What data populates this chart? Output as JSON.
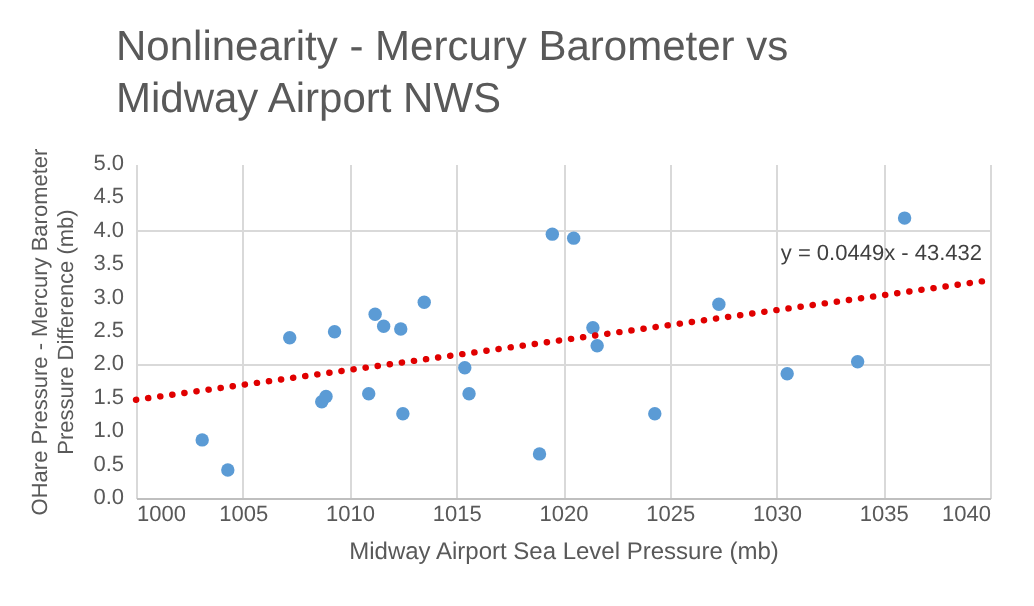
{
  "chart_data": {
    "type": "scatter",
    "title": "Nonlinearity - Mercury Barometer vs\nMidway Airport NWS",
    "xlabel": "Midway Airport Sea Level Pressure (mb)",
    "ylabel": "OHare Pressure - Mercury Barometer\nPressure Difference (mb)",
    "series": [
      {
        "color": "#5b9bd5",
        "x": [
          1003.1,
          1004.3,
          1007.2,
          1009.3,
          1008.7,
          1008.9,
          1011.2,
          1011.6,
          1012.4,
          1010.9,
          1012.5,
          1013.5,
          1015.4,
          1015.6,
          1018.9,
          1019.5,
          1020.5,
          1021.4,
          1021.6,
          1024.3,
          1027.3,
          1030.5,
          1033.8,
          1036.0
        ],
        "values": [
          0.87,
          0.42,
          2.4,
          2.49,
          1.44,
          1.52,
          2.75,
          2.57,
          2.53,
          1.56,
          1.26,
          2.93,
          1.95,
          1.56,
          0.66,
          3.95,
          3.89,
          2.55,
          2.28,
          1.26,
          2.9,
          1.86,
          2.04,
          4.19
        ]
      },
      {
        "type": "line",
        "color": "#e00000",
        "line_style": "dotted",
        "marker": "none",
        "x": [
          1000,
          1040
        ],
        "values": [
          1.47,
          3.26
        ]
      }
    ],
    "xlim": [
      1000,
      1040
    ],
    "xticks": [
      1000,
      1005,
      1010,
      1015,
      1020,
      1025,
      1030,
      1035,
      1040
    ],
    "ylim": [
      0,
      5
    ],
    "yticks": [
      {
        "value": 0,
        "label": "0.0"
      },
      {
        "value": 0.5,
        "label": "0.5"
      },
      {
        "value": 1,
        "label": "1.0"
      },
      {
        "value": 1.5,
        "label": "1.5"
      },
      {
        "value": 2,
        "label": "2.0"
      },
      {
        "value": 2.5,
        "label": "2.5"
      },
      {
        "value": 3,
        "label": "3.0"
      },
      {
        "value": 3.5,
        "label": "3.5"
      },
      {
        "value": 4,
        "label": "4.0"
      },
      {
        "value": 4.5,
        "label": "4.5"
      },
      {
        "value": 5,
        "label": "5.0"
      }
    ],
    "grid": true,
    "marker": "circle",
    "annotations": [
      "y = 0.0449x - 43.432"
    ]
  }
}
